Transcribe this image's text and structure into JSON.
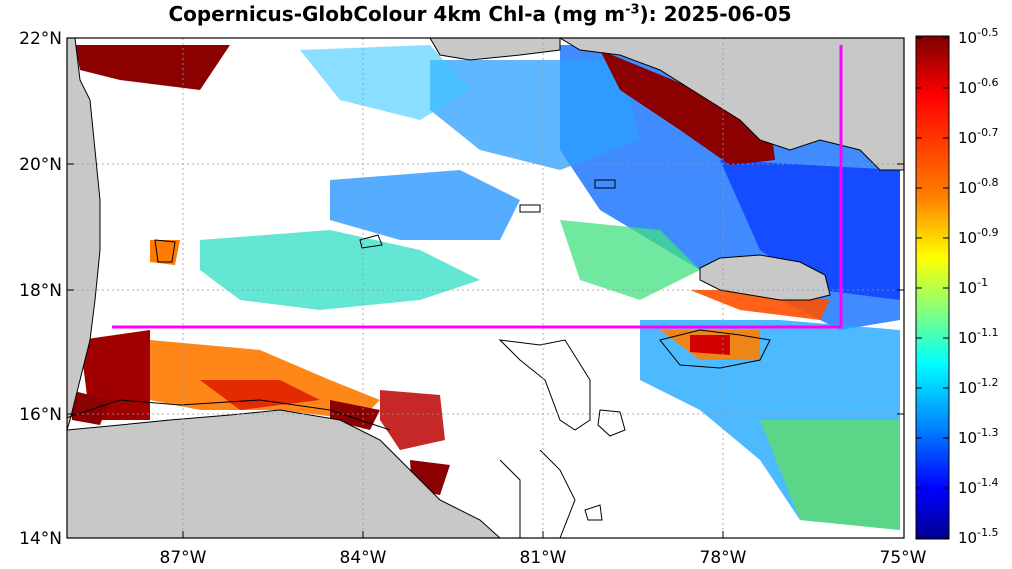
{
  "title": {
    "prefix": "Copernicus-GlobColour 4km Chl-a (mg m",
    "exponent": "-3",
    "suffix": "): 2025-06-05"
  },
  "axes": {
    "lat_labels": [
      "22°N",
      "20°N",
      "18°N",
      "16°N",
      "14°N"
    ],
    "lon_labels": [
      "87°W",
      "84°W",
      "81°W",
      "78°W",
      "75°W"
    ]
  },
  "colorbar": {
    "base": "10",
    "exponents": [
      "-0.5",
      "-0.6",
      "-0.7",
      "-0.8",
      "-0.9",
      "-1",
      "-1.1",
      "-1.2",
      "-1.3",
      "-1.4",
      "-1.5"
    ],
    "colors": [
      "#7f0000",
      "#ff0000",
      "#ff8000",
      "#ffff00",
      "#80ff80",
      "#00ffff",
      "#0080ff",
      "#0000ff",
      "#00008f"
    ]
  },
  "map": {
    "lon_range": [
      -89.5,
      -75
    ],
    "lat_range": [
      14,
      22
    ],
    "land_color": "#c8c8c8",
    "region_box_color": "#ff00ff"
  }
}
